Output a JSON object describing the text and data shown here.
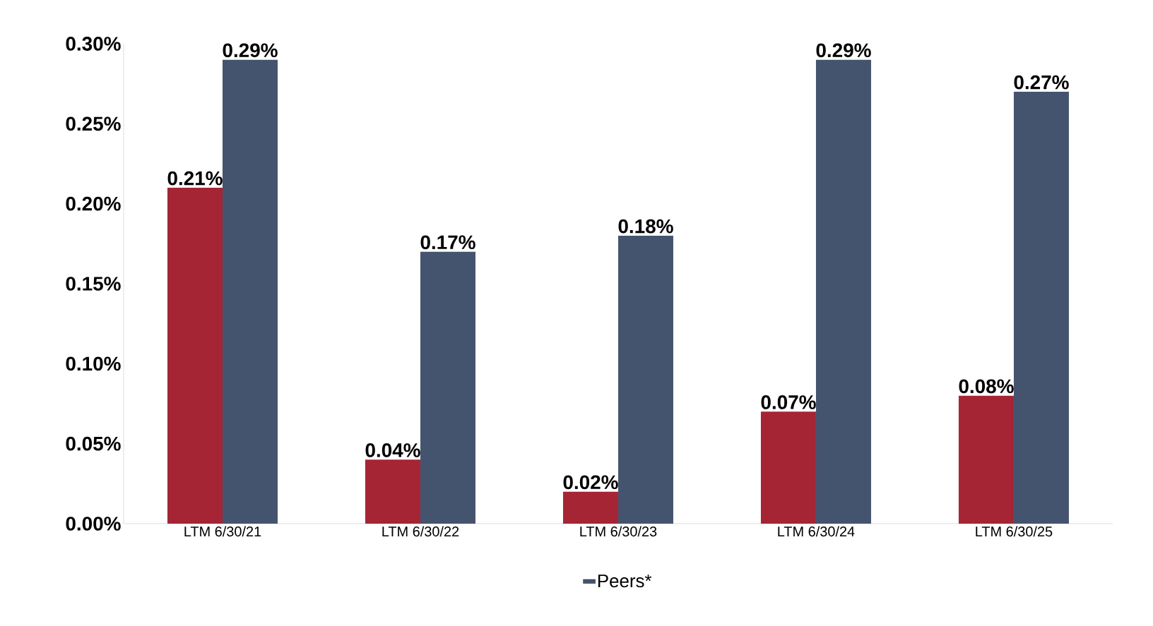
{
  "chart_data": {
    "type": "bar",
    "categories": [
      "LTM 6/30/21",
      "LTM 6/30/22",
      "LTM 6/30/23",
      "LTM 6/30/24",
      "LTM 6/30/25"
    ],
    "series": [
      {
        "color": "#a52535",
        "values": [
          0.21,
          0.04,
          0.02,
          0.07,
          0.08
        ],
        "value_labels": [
          "0.21%",
          "0.04%",
          "0.02%",
          "0.07%",
          "0.08%"
        ]
      },
      {
        "name": "Peers*",
        "color": "#45546e",
        "values": [
          0.29,
          0.17,
          0.18,
          0.29,
          0.27
        ],
        "value_labels": [
          "0.29%",
          "0.17%",
          "0.18%",
          "0.29%",
          "0.27%"
        ]
      }
    ],
    "ylim": [
      0,
      0.3
    ],
    "yticks": [
      {
        "value": 0,
        "label": "0.00%"
      },
      {
        "value": 0.05,
        "label": "0.05%"
      },
      {
        "value": 0.1,
        "label": "0.10%"
      },
      {
        "value": 0.15,
        "label": "0.15%"
      },
      {
        "value": 0.2,
        "label": "0.20%"
      },
      {
        "value": 0.25,
        "label": "0.25%"
      },
      {
        "value": 0.3,
        "label": "0.30%"
      }
    ],
    "grid": false,
    "legend": "bottom"
  }
}
